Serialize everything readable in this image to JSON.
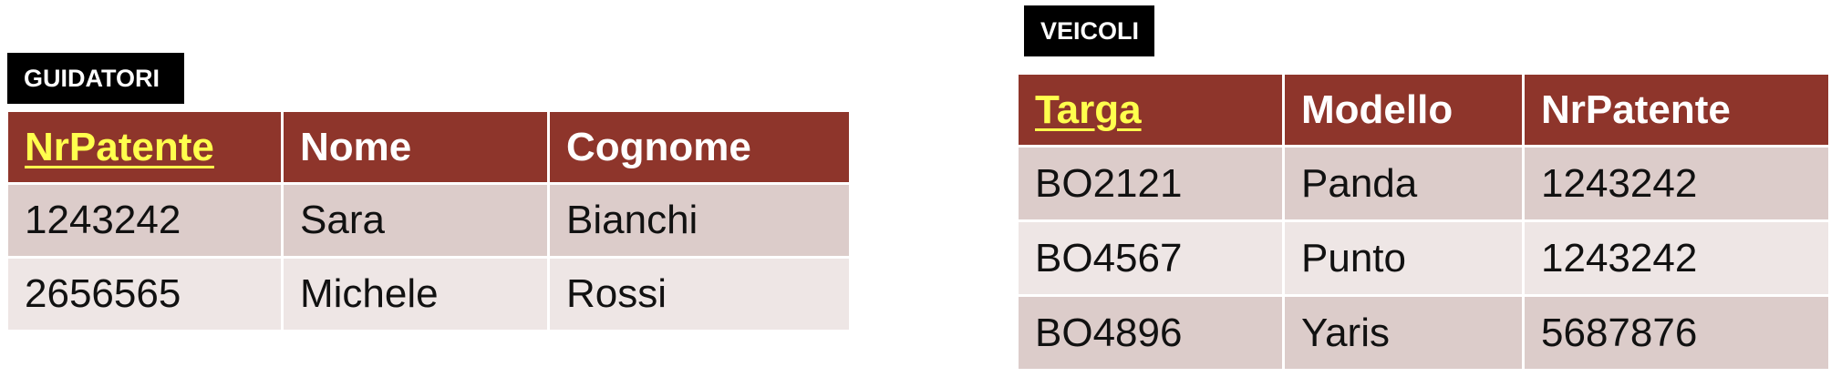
{
  "guidatori": {
    "title": "GUIDATORI",
    "headers": [
      "NrPatente",
      "Nome",
      "Cognome"
    ],
    "rows": [
      [
        "1243242",
        "Sara",
        "Bianchi"
      ],
      [
        "2656565",
        "Michele",
        "Rossi"
      ]
    ]
  },
  "veicoli": {
    "title": "VEICOLI",
    "headers": [
      "Targa",
      "Modello",
      "NrPatente"
    ],
    "rows": [
      [
        "BO2121",
        "Panda",
        "1243242"
      ],
      [
        "BO4567",
        "Punto",
        "1243242"
      ],
      [
        "BO4896",
        "Yaris",
        "5687876"
      ]
    ]
  },
  "colors": {
    "header_bg": "#8e352b",
    "primary_key_text": "#ffff4d",
    "row_odd_bg": "#dcccca",
    "row_even_bg": "#eee6e5",
    "label_bg": "#000000"
  }
}
